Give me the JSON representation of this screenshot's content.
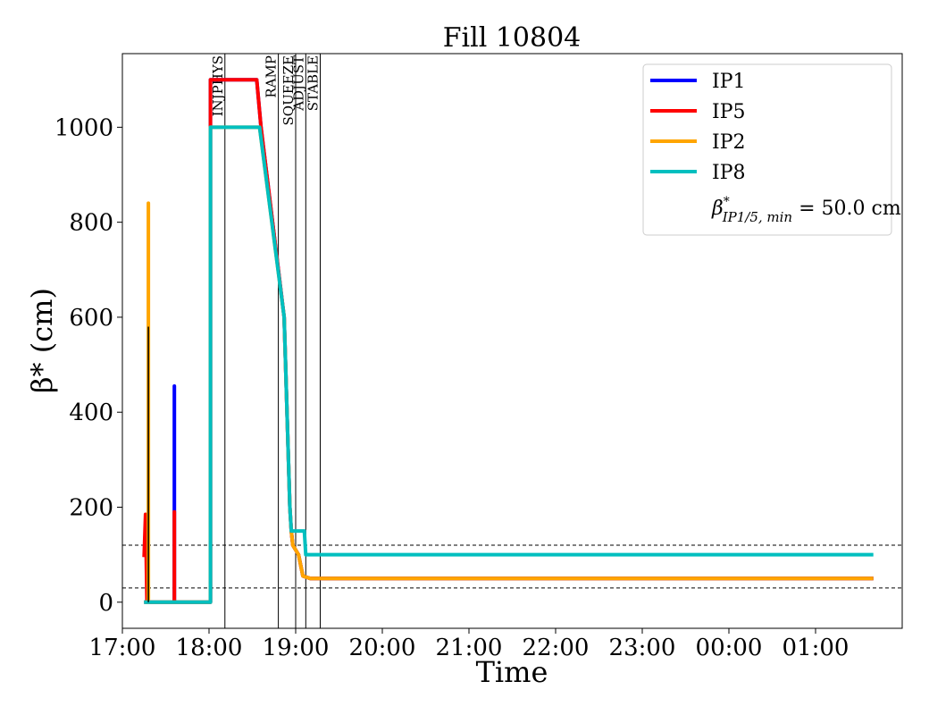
{
  "chart_data": {
    "type": "line",
    "title": "Fill 10804",
    "xlabel": "Time",
    "ylabel": "β* (cm)",
    "xlim": [
      "17:00",
      "02:00"
    ],
    "ylim": [
      -55,
      1155
    ],
    "x_ticks": [
      {
        "label": "17:00",
        "value": "17:00"
      },
      {
        "label": "18:00",
        "value": "18:00"
      },
      {
        "label": "19:00",
        "value": "19:00"
      },
      {
        "label": "20:00",
        "value": "20:00"
      },
      {
        "label": "21:00",
        "value": "21:00"
      },
      {
        "label": "22:00",
        "value": "22:00"
      },
      {
        "label": "23:00",
        "value": "23:00"
      },
      {
        "label": "00:00",
        "value": "00:00"
      },
      {
        "label": "01:00",
        "value": "01:00"
      }
    ],
    "y_ticks": [
      0,
      200,
      400,
      600,
      800,
      1000
    ],
    "legend": {
      "position": "top-right",
      "entries": [
        "IP1",
        "IP5",
        "IP2",
        "IP8"
      ],
      "extra_text": {
        "base": "β",
        "sup": "*",
        "sub": "IP1/5, min",
        "value": " = 50.0 cm"
      }
    },
    "beam_modes": [
      {
        "label": "INJPHYS",
        "x": "18:11"
      },
      {
        "label": "RAMP",
        "x": "18:48"
      },
      {
        "label": "SQUEEZE",
        "x": "19:00"
      },
      {
        "label": "ADJUST",
        "x": "19:07"
      },
      {
        "label": "STABLE",
        "x": "19:17"
      }
    ],
    "reference_lines": [
      120,
      30
    ],
    "series": [
      {
        "name": "IP1",
        "color": "#0000ff",
        "points": [
          [
            "17:15",
            0
          ],
          [
            "17:36",
            0
          ],
          [
            "17:36",
            455
          ],
          [
            "17:36",
            0
          ],
          [
            "18:01",
            0
          ],
          [
            "18:01",
            1100
          ],
          [
            "18:33",
            1100
          ],
          [
            "18:36",
            1000
          ],
          [
            "18:52",
            600
          ],
          [
            "18:56",
            200
          ],
          [
            "18:57",
            150
          ],
          [
            "18:58",
            120
          ],
          [
            "19:02",
            100
          ],
          [
            "19:05",
            55
          ],
          [
            "19:10",
            50
          ],
          [
            "01:40",
            50
          ]
        ]
      },
      {
        "name": "IP5",
        "color": "#ff0000",
        "points": [
          [
            "17:15",
            95
          ],
          [
            "17:16",
            185
          ],
          [
            "17:17",
            0
          ],
          [
            "17:36",
            0
          ],
          [
            "17:36",
            190
          ],
          [
            "17:36",
            0
          ],
          [
            "18:01",
            0
          ],
          [
            "18:01",
            1100
          ],
          [
            "18:33",
            1100
          ],
          [
            "18:36",
            1000
          ],
          [
            "18:52",
            600
          ],
          [
            "18:56",
            200
          ],
          [
            "18:57",
            150
          ],
          [
            "18:58",
            120
          ],
          [
            "19:02",
            100
          ],
          [
            "19:05",
            55
          ],
          [
            "19:10",
            50
          ],
          [
            "01:40",
            50
          ]
        ]
      },
      {
        "name": "IP2",
        "color": "#ffa500",
        "points": [
          [
            "17:15",
            0
          ],
          [
            "17:18",
            0
          ],
          [
            "17:18",
            840
          ],
          [
            "17:18",
            0
          ],
          [
            "18:01",
            0
          ],
          [
            "18:01",
            1000
          ],
          [
            "18:35",
            1000
          ],
          [
            "18:52",
            600
          ],
          [
            "18:56",
            200
          ],
          [
            "18:57",
            150
          ],
          [
            "18:58",
            120
          ],
          [
            "19:02",
            100
          ],
          [
            "19:05",
            55
          ],
          [
            "19:10",
            50
          ],
          [
            "01:40",
            50
          ]
        ]
      },
      {
        "name": "IP8",
        "color": "#00bfbf",
        "points": [
          [
            "17:15",
            0
          ],
          [
            "18:01",
            0
          ],
          [
            "18:01",
            1000
          ],
          [
            "18:35",
            1000
          ],
          [
            "18:52",
            600
          ],
          [
            "18:56",
            200
          ],
          [
            "18:57",
            150
          ],
          [
            "19:06",
            150
          ],
          [
            "19:07",
            100
          ],
          [
            "01:40",
            100
          ]
        ]
      }
    ],
    "spikes": [
      {
        "color": "#000000",
        "x": "17:18",
        "y0": 0,
        "y1": 580
      }
    ]
  }
}
